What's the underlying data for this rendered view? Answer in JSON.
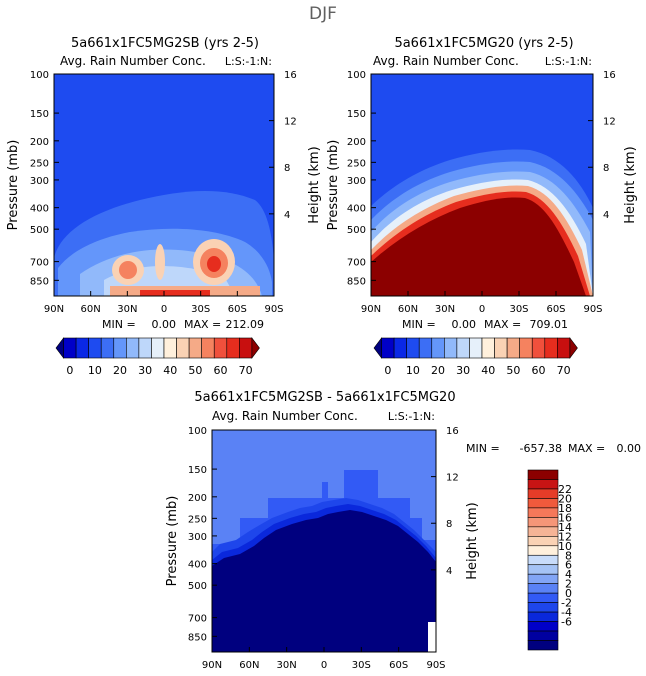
{
  "page": {
    "title": "DJF"
  },
  "palettes": {
    "top": [
      "#00007f",
      "#0000c8",
      "#0a28e6",
      "#1e4bf0",
      "#3c6ef5",
      "#6496fa",
      "#91b9fa",
      "#bed7fa",
      "#e6f0fa",
      "#fff0dc",
      "#fad2b4",
      "#f5aa87",
      "#f5825f",
      "#f0503c",
      "#e62d1e",
      "#c80f0f",
      "#8c0000"
    ],
    "diff": [
      "#00007f",
      "#0000a0",
      "#0000c8",
      "#0a28dc",
      "#1e46eb",
      "#325af5",
      "#5a82f5",
      "#82a5f5",
      "#a5c3f5",
      "#c8dcfa",
      "#fff0dc",
      "#fad2b4",
      "#f5b496",
      "#f59678",
      "#f5785a",
      "#f05a3c",
      "#e63c28",
      "#c81414",
      "#8c0000"
    ]
  },
  "chart_data": [
    {
      "type": "contour",
      "title": "5a661x1FC5MG2SB (yrs 2-5)",
      "subtitle": "Avg. Rain Number Conc.",
      "tag": "L:S:-1:N:",
      "ylabel": "Pressure (mb)",
      "ylabel2": "Height (km)",
      "xticks": [
        "90N",
        "60N",
        "30N",
        "0",
        "30S",
        "60S",
        "90S"
      ],
      "yticks": [
        "100",
        "150",
        "200",
        "250",
        "300",
        "400",
        "500",
        "700",
        "850"
      ],
      "ytick_values": [
        100,
        150,
        200,
        250,
        300,
        400,
        500,
        700,
        850
      ],
      "ylim": [
        100,
        1000
      ],
      "yticks2": [
        "16",
        "12",
        "8",
        "4"
      ],
      "ytick2_values": [
        16,
        12,
        8,
        4
      ],
      "min_label": "MIN =",
      "min_value": "0.00",
      "max_label": "MAX =",
      "max_value": "212.09"
    },
    {
      "type": "contour",
      "title": "5a661x1FC5MG20 (yrs 2-5)",
      "subtitle": "Avg. Rain Number Conc.",
      "tag": "L:S:-1:N:",
      "ylabel": "Pressure (mb)",
      "ylabel2": "Height (km)",
      "xticks": [
        "90N",
        "60N",
        "30N",
        "0",
        "30S",
        "60S",
        "90S"
      ],
      "yticks": [
        "100",
        "150",
        "200",
        "250",
        "300",
        "400",
        "500",
        "700",
        "850"
      ],
      "ytick_values": [
        100,
        150,
        200,
        250,
        300,
        400,
        500,
        700,
        850
      ],
      "ylim": [
        100,
        1000
      ],
      "yticks2": [
        "16",
        "12",
        "8",
        "4"
      ],
      "ytick2_values": [
        16,
        12,
        8,
        4
      ],
      "min_label": "MIN =",
      "min_value": "0.00",
      "max_label": "MAX =",
      "max_value": "709.01"
    },
    {
      "type": "contour",
      "title": "5a661x1FC5MG2SB - 5a661x1FC5MG20",
      "subtitle": "Avg. Rain Number Conc.",
      "tag": "L:S:-1:N:",
      "ylabel": "Pressure (mb)",
      "ylabel2": "Height (km)",
      "xticks": [
        "90N",
        "60N",
        "30N",
        "0",
        "30S",
        "60S",
        "90S"
      ],
      "yticks": [
        "100",
        "150",
        "200",
        "250",
        "300",
        "400",
        "500",
        "700",
        "850"
      ],
      "ytick_values": [
        100,
        150,
        200,
        250,
        300,
        400,
        500,
        700,
        850
      ],
      "ylim": [
        100,
        1000
      ],
      "yticks2": [
        "16",
        "12",
        "8",
        "4"
      ],
      "ytick2_values": [
        16,
        12,
        8,
        4
      ],
      "min_label": "MIN =",
      "min_value": "-657.38",
      "max_label": "MAX =",
      "max_value": "0.00"
    }
  ],
  "colorbars": {
    "top": {
      "labels": [
        "0",
        "10",
        "20",
        "30",
        "40",
        "50",
        "60",
        "70"
      ]
    },
    "diff": {
      "labels": [
        "22",
        "20",
        "18",
        "16",
        "14",
        "12",
        "10",
        "8",
        "6",
        "4",
        "2",
        "0",
        "-2",
        "-4",
        "-6"
      ]
    }
  }
}
